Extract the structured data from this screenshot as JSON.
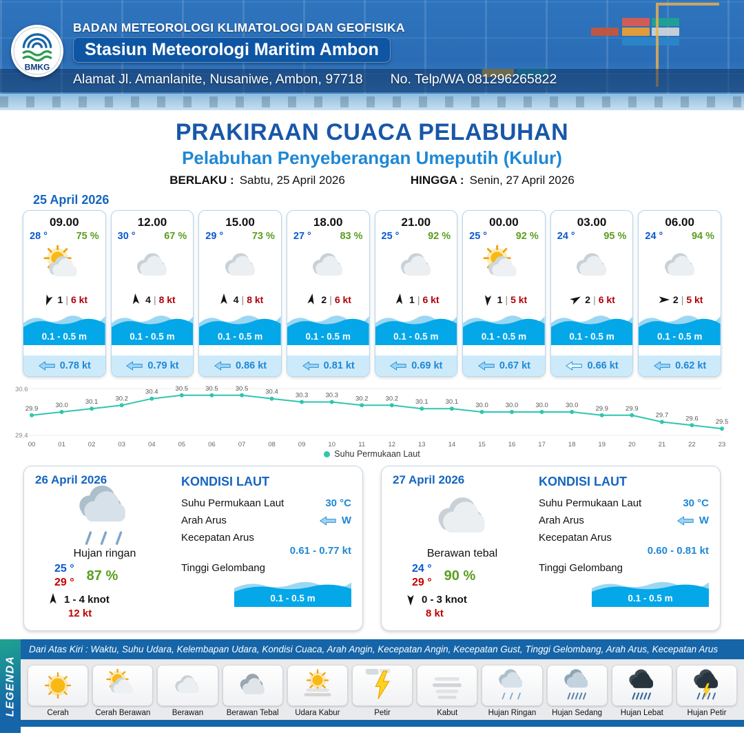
{
  "header": {
    "agency": "BADAN METEOROLOGI KLIMATOLOGI DAN GEOFISIKA",
    "station": "Stasiun Meteorologi Maritim Ambon",
    "address": "Alamat Jl. Amanlanite, Nusaniwe, Ambon, 97718",
    "phone": "No. Telp/WA  081296265822",
    "logo_text": "BMKG"
  },
  "title": {
    "main": "PRAKIRAAN CUACA PELABUHAN",
    "sub": "Pelabuhan Penyeberangan Umeputih (Kulur)"
  },
  "validity": {
    "berlaku_label": "BERLAKU :",
    "berlaku_value": "Sabtu, 25 April 2026",
    "hingga_label": "HINGGA :",
    "hingga_value": "Senin, 27 April 2026"
  },
  "strings": {
    "pipe": "|"
  },
  "forecast": {
    "date": "25 April 2026",
    "cards": [
      {
        "time": "09.00",
        "temp": "28 °",
        "rh": "75 %",
        "icon": "cerah-berawan",
        "wind_rot": 200,
        "wind_value": "1",
        "wind_speed": "6 kt",
        "wave": "0.1 - 0.5 m",
        "current": "0.78 kt",
        "current_style": "plain"
      },
      {
        "time": "12.00",
        "temp": "30 °",
        "rh": "67 %",
        "icon": "berawan",
        "wind_rot": 355,
        "wind_value": "4",
        "wind_speed": "8 kt",
        "wave": "0.1 - 0.5 m",
        "current": "0.79 kt",
        "current_style": "plain"
      },
      {
        "time": "15.00",
        "temp": "29 °",
        "rh": "73 %",
        "icon": "berawan",
        "wind_rot": 0,
        "wind_value": "4",
        "wind_speed": "8 kt",
        "wave": "0.1 - 0.5 m",
        "current": "0.86 kt",
        "current_style": "plain"
      },
      {
        "time": "18.00",
        "temp": "27 °",
        "rh": "83 %",
        "icon": "berawan",
        "wind_rot": 10,
        "wind_value": "2",
        "wind_speed": "6 kt",
        "wave": "0.1 - 0.5 m",
        "current": "0.81 kt",
        "current_style": "plain"
      },
      {
        "time": "21.00",
        "temp": "25 °",
        "rh": "92 %",
        "icon": "berawan",
        "wind_rot": 5,
        "wind_value": "1",
        "wind_speed": "6 kt",
        "wave": "0.1 - 0.5 m",
        "current": "0.69 kt",
        "current_style": "plain"
      },
      {
        "time": "00.00",
        "temp": "25 °",
        "rh": "92 %",
        "icon": "cerah-berawan",
        "wind_rot": 185,
        "wind_value": "1",
        "wind_speed": "5 kt",
        "wave": "0.1 - 0.5 m",
        "current": "0.67 kt",
        "current_style": "plain"
      },
      {
        "time": "03.00",
        "temp": "24 °",
        "rh": "95 %",
        "icon": "berawan",
        "wind_rot": 60,
        "wind_value": "2",
        "wind_speed": "6 kt",
        "wave": "0.1 - 0.5 m",
        "current": "0.66 kt",
        "current_style": "outline"
      },
      {
        "time": "06.00",
        "temp": "24 °",
        "rh": "94 %",
        "icon": "berawan",
        "wind_rot": 90,
        "wind_value": "2",
        "wind_speed": "5 kt",
        "wave": "0.1 - 0.5 m",
        "current": "0.62 kt",
        "current_style": "plain"
      }
    ]
  },
  "chart_data": {
    "type": "line",
    "legend": "Suhu Permukaan Laut",
    "color": "#2fc5ae",
    "hours": [
      "00",
      "01",
      "02",
      "03",
      "04",
      "05",
      "06",
      "07",
      "08",
      "09",
      "10",
      "11",
      "12",
      "13",
      "14",
      "15",
      "16",
      "17",
      "18",
      "19",
      "20",
      "21",
      "22",
      "23"
    ],
    "values": [
      29.9,
      30.0,
      30.1,
      30.2,
      30.4,
      30.5,
      30.5,
      30.5,
      30.4,
      30.3,
      30.3,
      30.2,
      30.2,
      30.1,
      30.1,
      30.0,
      30.0,
      30.0,
      30.0,
      29.9,
      29.9,
      29.7,
      29.6,
      29.5
    ],
    "ylim": [
      29.4,
      30.6
    ],
    "xlabel": "",
    "ylabel": ""
  },
  "days": [
    {
      "date": "26 April 2026",
      "icon": "hujan-ringan",
      "condition": "Hujan ringan",
      "temp_min": "25 °",
      "temp_max": "29 °",
      "rh": "87 %",
      "wind_rot": 0,
      "wind_range": "1  - 4 knot",
      "gust": "12 kt",
      "sea": {
        "heading": "KONDISI LAUT",
        "sst_label": "Suhu Permukaan Laut",
        "sst": "30 °C",
        "dir_label": "Arah Arus",
        "dir": "W",
        "speed_label": "Kecepatan Arus",
        "speed": "0.61 - 0.77 kt",
        "wave_label": "Tinggi Gelombang",
        "wave": "0.1 - 0.5 m"
      }
    },
    {
      "date": "27 April 2026",
      "icon": "berawan",
      "condition": "Berawan tebal",
      "temp_min": "24 °",
      "temp_max": "29 °",
      "rh": "90 %",
      "wind_rot": 180,
      "wind_range": "0  - 3 knot",
      "gust": "8 kt",
      "sea": {
        "heading": "KONDISI LAUT",
        "sst_label": "Suhu Permukaan Laut",
        "sst": "30 °C",
        "dir_label": "Arah Arus",
        "dir": "W",
        "speed_label": "Kecepatan Arus",
        "speed": "0.60 - 0.81 kt",
        "wave_label": "Tinggi Gelombang",
        "wave": "0.1 - 0.5 m"
      }
    }
  ],
  "legend": {
    "title": "LEGENDA",
    "note": "Dari Atas Kiri : Waktu, Suhu Udara, Kelembapan Udara, Kondisi Cuaca, Arah Angin, Kecepatan Angin, Kecepatan Gust, Tinggi Gelombang, Arah Arus, Kecepatan Arus",
    "items": [
      {
        "label": "Cerah",
        "icon": "cerah"
      },
      {
        "label": "Cerah Berawan",
        "icon": "cerah-berawan"
      },
      {
        "label": "Berawan",
        "icon": "berawan"
      },
      {
        "label": "Berawan Tebal",
        "icon": "berawan-tebal"
      },
      {
        "label": "Udara Kabur",
        "icon": "udara-kabur"
      },
      {
        "label": "Petir",
        "icon": "petir"
      },
      {
        "label": "Kabut",
        "icon": "kabut"
      },
      {
        "label": "Hujan Ringan",
        "icon": "hujan-ringan"
      },
      {
        "label": "Hujan Sedang",
        "icon": "hujan-sedang"
      },
      {
        "label": "Hujan Lebat",
        "icon": "hujan-lebat"
      },
      {
        "label": "Hujan Petir",
        "icon": "hujan-petir"
      }
    ]
  }
}
